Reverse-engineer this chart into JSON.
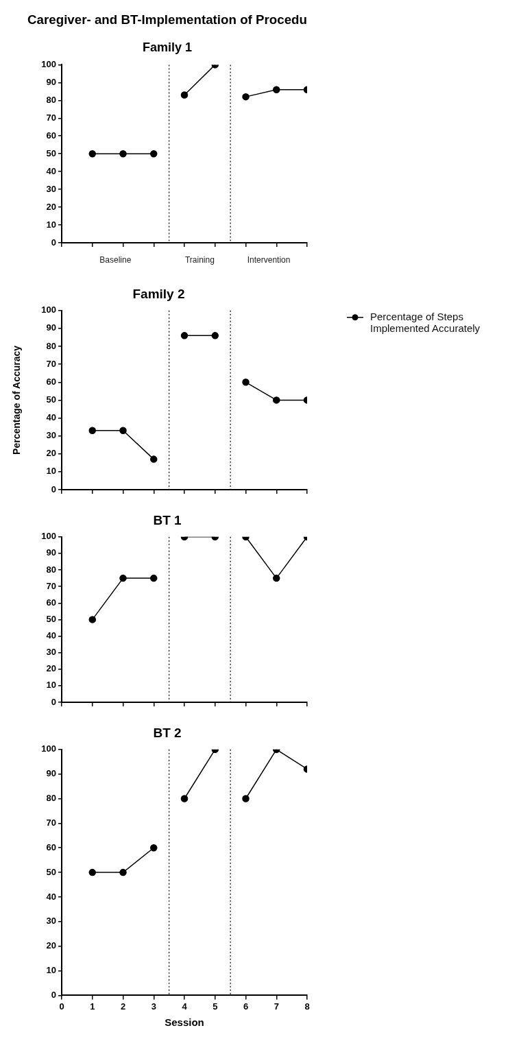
{
  "chart_data": [
    {
      "type": "line",
      "title": "Caregiver- and BT-Implementation of Procedu",
      "subtitle": "Family 1",
      "xlim": [
        0,
        8
      ],
      "xticks": [
        {
          "value": 0,
          "label": null
        },
        {
          "value": 1,
          "label": null
        },
        {
          "value": 2,
          "label": null
        },
        {
          "value": 3,
          "label": null
        },
        {
          "value": 4,
          "label": null
        },
        {
          "value": 5,
          "label": null
        },
        {
          "value": 6,
          "label": null
        },
        {
          "value": 7,
          "label": null
        },
        {
          "value": 8,
          "label": null
        }
      ],
      "ylim": [
        0,
        100
      ],
      "yticks": [
        0,
        10,
        20,
        30,
        40,
        50,
        60,
        70,
        80,
        90,
        100
      ],
      "tick_labels": "y",
      "grid": false,
      "marker": "circle",
      "line_style": "solid",
      "series": [
        {
          "color": "#000000",
          "x": [
            1,
            2,
            3
          ],
          "values": [
            50,
            50,
            50
          ]
        },
        {
          "color": "#000000",
          "x": [
            4,
            5
          ],
          "values": [
            83,
            100
          ]
        },
        {
          "color": "#000000",
          "x": [
            6,
            7,
            8
          ],
          "values": [
            82,
            86,
            86
          ]
        }
      ],
      "ref_lines": [
        {
          "axis": "x",
          "value": 3.5,
          "color": "#000000",
          "line_style": "dotted"
        },
        {
          "axis": "x",
          "value": 5.5,
          "color": "#000000",
          "line_style": "dotted"
        }
      ],
      "annotations": [
        "Baseline",
        "Training",
        "Intervention"
      ]
    },
    {
      "type": "line",
      "title": "Family 2",
      "ylabel": "Percentage of Accuracy",
      "xlim": [
        0,
        8
      ],
      "xticks": [
        {
          "value": 0,
          "label": null
        },
        {
          "value": 1,
          "label": null
        },
        {
          "value": 2,
          "label": null
        },
        {
          "value": 3,
          "label": null
        },
        {
          "value": 4,
          "label": null
        },
        {
          "value": 5,
          "label": null
        },
        {
          "value": 6,
          "label": null
        },
        {
          "value": 7,
          "label": null
        },
        {
          "value": 8,
          "label": null
        }
      ],
      "ylim": [
        0,
        100
      ],
      "yticks": [
        0,
        10,
        20,
        30,
        40,
        50,
        60,
        70,
        80,
        90,
        100
      ],
      "tick_labels": "y",
      "grid": false,
      "marker": "circle",
      "line_style": "solid",
      "legend": "right",
      "series": [
        {
          "name": "Percentage of Steps Implemented Accurately",
          "color": "#000000",
          "x": [
            1,
            2,
            3
          ],
          "values": [
            33,
            33,
            17
          ]
        },
        {
          "color": "#000000",
          "x": [
            4,
            5
          ],
          "values": [
            86,
            86
          ]
        },
        {
          "color": "#000000",
          "x": [
            6,
            7,
            8
          ],
          "values": [
            60,
            50,
            50
          ]
        }
      ],
      "ref_lines": [
        {
          "axis": "x",
          "value": 3.5,
          "color": "#000000",
          "line_style": "dotted"
        },
        {
          "axis": "x",
          "value": 5.5,
          "color": "#000000",
          "line_style": "dotted"
        }
      ]
    },
    {
      "type": "line",
      "title": "BT 1",
      "xlim": [
        0,
        8
      ],
      "xticks": [
        {
          "value": 0,
          "label": null
        },
        {
          "value": 1,
          "label": null
        },
        {
          "value": 2,
          "label": null
        },
        {
          "value": 3,
          "label": null
        },
        {
          "value": 4,
          "label": null
        },
        {
          "value": 5,
          "label": null
        },
        {
          "value": 6,
          "label": null
        },
        {
          "value": 7,
          "label": null
        },
        {
          "value": 8,
          "label": null
        }
      ],
      "ylim": [
        0,
        100
      ],
      "yticks": [
        0,
        10,
        20,
        30,
        40,
        50,
        60,
        70,
        80,
        90,
        100
      ],
      "tick_labels": "y",
      "grid": false,
      "marker": "circle",
      "line_style": "solid",
      "series": [
        {
          "color": "#000000",
          "x": [
            1,
            2,
            3
          ],
          "values": [
            50,
            75,
            75
          ]
        },
        {
          "color": "#000000",
          "x": [
            4,
            5
          ],
          "values": [
            100,
            100
          ]
        },
        {
          "color": "#000000",
          "x": [
            6,
            7,
            8
          ],
          "values": [
            100,
            75,
            100
          ]
        }
      ],
      "ref_lines": [
        {
          "axis": "x",
          "value": 3.5,
          "color": "#000000",
          "line_style": "dotted"
        },
        {
          "axis": "x",
          "value": 5.5,
          "color": "#000000",
          "line_style": "dotted"
        }
      ]
    },
    {
      "type": "line",
      "title": "BT 2",
      "xlabel": "Session",
      "xlim": [
        0,
        8
      ],
      "xticks": [
        0,
        1,
        2,
        3,
        4,
        5,
        6,
        7,
        8
      ],
      "ylim": [
        0,
        100
      ],
      "yticks": [
        0,
        10,
        20,
        30,
        40,
        50,
        60,
        70,
        80,
        90,
        100
      ],
      "grid": false,
      "marker": "circle",
      "line_style": "solid",
      "series": [
        {
          "color": "#000000",
          "x": [
            1,
            2,
            3
          ],
          "values": [
            50,
            50,
            60
          ]
        },
        {
          "color": "#000000",
          "x": [
            4,
            5
          ],
          "values": [
            80,
            100
          ]
        },
        {
          "color": "#000000",
          "x": [
            6,
            7,
            8
          ],
          "values": [
            80,
            100,
            92
          ]
        }
      ],
      "ref_lines": [
        {
          "axis": "x",
          "value": 3.5,
          "color": "#000000",
          "line_style": "dotted"
        },
        {
          "axis": "x",
          "value": 5.5,
          "color": "#000000",
          "line_style": "dotted"
        }
      ]
    }
  ]
}
